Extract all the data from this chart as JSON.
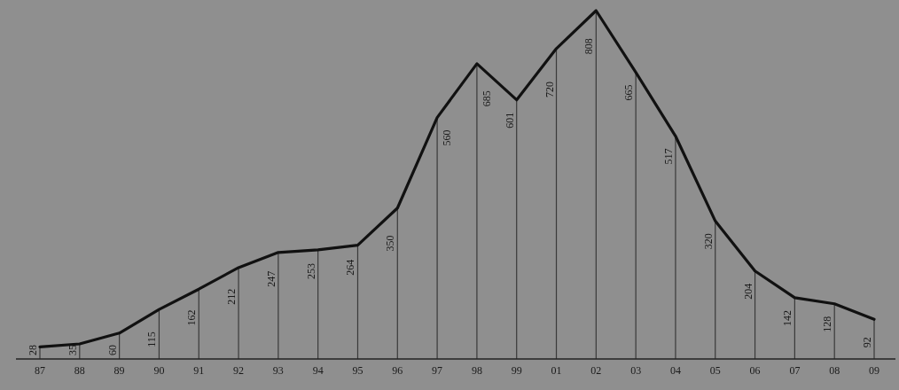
{
  "chart_data": {
    "type": "line",
    "categories": [
      "87",
      "88",
      "89",
      "90",
      "91",
      "92",
      "93",
      "94",
      "95",
      "96",
      "97",
      "98",
      "99",
      "01",
      "02",
      "03",
      "04",
      "05",
      "06",
      "07",
      "08",
      "09"
    ],
    "series": [
      {
        "type": "bar",
        "color": "#3a3a3a",
        "values": [
          28,
          35,
          60,
          115,
          162,
          212,
          247,
          253,
          264,
          350,
          560,
          685,
          601,
          720,
          808,
          665,
          517,
          320,
          204,
          142,
          128,
          92
        ]
      },
      {
        "color": "#111111",
        "values": [
          28,
          35,
          60,
          115,
          162,
          212,
          247,
          253,
          264,
          350,
          560,
          685,
          601,
          720,
          808,
          665,
          517,
          320,
          204,
          142,
          128,
          92
        ],
        "value_labels": [
          "28",
          "35",
          "60",
          "115",
          "162",
          "212",
          "247",
          "253",
          "264",
          "350",
          "560",
          "685",
          "601",
          "720",
          "808",
          "665",
          "517",
          "320",
          "204",
          "142",
          "128",
          "92"
        ]
      }
    ],
    "marker": "none",
    "line_style": "solid"
  }
}
